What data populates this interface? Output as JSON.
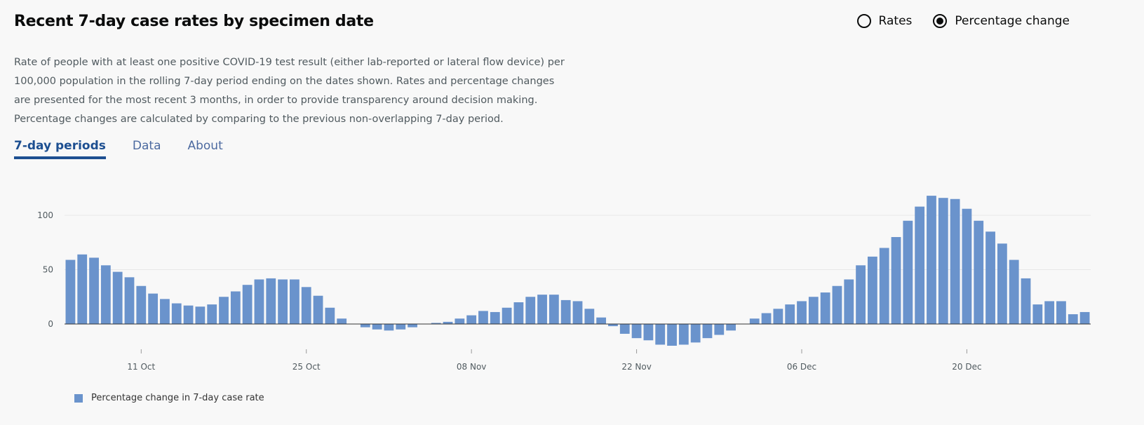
{
  "header": {
    "title": "Recent 7-day case rates by specimen date",
    "description": "Rate of people with at least one positive COVID-19 test result (either lab-reported or lateral flow device) per 100,000 population in the rolling 7-day period ending on the dates shown. Rates and percentage changes are presented for the most recent 3 months, in order to provide transparency around decision making. Percentage changes are calculated by comparing to the previous non-overlapping 7-day period."
  },
  "radio_options": [
    {
      "label": "Rates",
      "selected": false
    },
    {
      "label": "Percentage change",
      "selected": true
    }
  ],
  "tabs": [
    {
      "label": "7-day periods",
      "active": true
    },
    {
      "label": "Data",
      "active": false
    },
    {
      "label": "About",
      "active": false
    }
  ],
  "legend": {
    "label": "Percentage change in 7-day case rate"
  },
  "colors": {
    "bar": "#6a93cc",
    "axis": "#333333",
    "grid": "#e8e8e8"
  },
  "chart_data": {
    "type": "bar",
    "title": "",
    "xlabel": "",
    "ylabel": "",
    "ylim": [
      -25,
      130
    ],
    "yticks": [
      0,
      50,
      100
    ],
    "grid": true,
    "legend_position": "bottom-left",
    "x_tick_labels": [
      {
        "label": "11 Oct",
        "index": 6
      },
      {
        "label": "25 Oct",
        "index": 20
      },
      {
        "label": "08 Nov",
        "index": 34
      },
      {
        "label": "22 Nov",
        "index": 48
      },
      {
        "label": "06 Dec",
        "index": 62
      },
      {
        "label": "20 Dec",
        "index": 76
      }
    ],
    "series": [
      {
        "name": "Percentage change in 7-day case rate",
        "values": [
          59,
          64,
          61,
          54,
          48,
          43,
          35,
          28,
          23,
          19,
          17,
          16,
          18,
          25,
          30,
          36,
          41,
          42,
          41,
          41,
          34,
          26,
          15,
          5,
          0,
          -3,
          -5,
          -6,
          -5,
          -3,
          0,
          1,
          2,
          5,
          8,
          12,
          11,
          15,
          20,
          25,
          27,
          27,
          22,
          21,
          14,
          6,
          -2,
          -9,
          -13,
          -15,
          -19,
          -20,
          -19,
          -17,
          -13,
          -10,
          -6,
          0,
          5,
          10,
          14,
          18,
          21,
          25,
          29,
          35,
          41,
          54,
          62,
          70,
          80,
          95,
          108,
          118,
          116,
          115,
          106,
          95,
          85,
          74,
          59,
          42,
          18,
          21,
          21,
          9,
          11
        ]
      }
    ]
  }
}
